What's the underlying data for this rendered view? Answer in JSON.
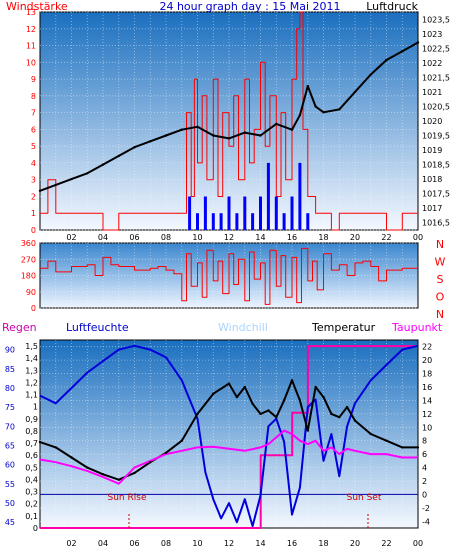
{
  "top": {
    "title": "24 hour graph day : 15 Mai 2011",
    "left_label": "Windstärke",
    "right_label": "Luftdruck",
    "wind_ticks": [
      "0",
      "1",
      "2",
      "3",
      "4",
      "5",
      "6",
      "7",
      "8",
      "9",
      "10",
      "11",
      "12",
      "13"
    ],
    "pressure_ticks": [
      "1016,5",
      "1017",
      "1017,5",
      "1018",
      "1018,5",
      "1019",
      "1019,5",
      "1020",
      "1020,5",
      "1021",
      "1021,5",
      "1022",
      "1022,5",
      "1023",
      "1023,5"
    ]
  },
  "middle": {
    "dir_ticks": [
      "0",
      "90",
      "180",
      "270",
      "360"
    ],
    "compass": [
      "N",
      "W",
      "S",
      "O",
      "N"
    ]
  },
  "bottom": {
    "labels": {
      "regen": "Regen",
      "luftfeuchte": "Luftfeuchte",
      "windchill": "Windchill",
      "temperatur": "Temperatur",
      "taupunkt": "Taupunkt"
    },
    "regen_ticks": [
      "0",
      "0,1",
      "0,2",
      "0,3",
      "0,4",
      "0,5",
      "0,6",
      "0,7",
      "0,8",
      "0,9",
      "1",
      "1,1",
      "1,2",
      "1,3",
      "1,4",
      "1,5"
    ],
    "humidity_ticks": [
      "45",
      "50",
      "55",
      "60",
      "65",
      "70",
      "75",
      "80",
      "85",
      "90"
    ],
    "temp_ticks": [
      "-4",
      "-2",
      "0",
      "2",
      "4",
      "6",
      "8",
      "10",
      "12",
      "14",
      "16",
      "18",
      "20",
      "22"
    ],
    "sunrise": "Sun Rise",
    "sunset": "Sun Set"
  },
  "x_ticks": [
    "02",
    "04",
    "06",
    "08",
    "10",
    "12",
    "14",
    "16",
    "18",
    "20",
    "22",
    "00"
  ],
  "colors": {
    "wind": "#ff0000",
    "gust": "#0000ff",
    "pressure": "#000000",
    "direction": "#ff0000",
    "humidity": "#0000dd",
    "temperature": "#000000",
    "dewpoint": "#ff00ff",
    "rain": "#ff00aa",
    "windchill": "#aad4ff",
    "label_red": "#ff0000",
    "label_blue": "#0000cc",
    "label_magenta": "#ff00ff"
  },
  "chart_data": [
    {
      "type": "line",
      "title": "24 hour graph day : 15 Mai 2011",
      "x_range": [
        0,
        24
      ],
      "series": [
        {
          "name": "Windstärke",
          "axis": "left",
          "ylim": [
            0,
            13
          ],
          "x": [
            0,
            0.5,
            1,
            2,
            3,
            4,
            5,
            6,
            7,
            8,
            9,
            9.3,
            9.6,
            9.8,
            10,
            10.3,
            10.6,
            11,
            11.3,
            11.6,
            12,
            12.3,
            12.6,
            13,
            13.3,
            13.6,
            14,
            14.3,
            14.6,
            15,
            15.3,
            15.6,
            16,
            16.3,
            16.5,
            16.7,
            17,
            17.5,
            18,
            18.5,
            19,
            20,
            21,
            22,
            23,
            24
          ],
          "y": [
            1,
            3,
            1,
            1,
            1,
            0,
            1,
            1,
            1,
            1,
            1,
            7,
            2,
            9,
            4,
            8,
            3,
            9,
            2,
            7,
            5,
            8,
            3,
            9,
            4,
            6,
            10,
            5,
            8,
            2,
            7,
            3,
            9,
            12,
            13,
            6,
            2,
            1,
            1,
            0,
            1,
            1,
            1,
            0,
            1,
            1
          ]
        },
        {
          "name": "Gust",
          "axis": "left",
          "ylim": [
            0,
            13
          ],
          "x": [
            9.5,
            10,
            10.5,
            11,
            11.5,
            12,
            12.5,
            13,
            13.5,
            14,
            14.5,
            15,
            15.5,
            16,
            16.5,
            17
          ],
          "y": [
            2,
            1,
            2,
            1,
            1,
            2,
            1,
            2,
            1,
            2,
            4,
            2,
            1,
            2,
            4,
            1
          ]
        },
        {
          "name": "Luftdruck",
          "axis": "right",
          "ylim": [
            1016.25,
            1023.75
          ],
          "x": [
            0,
            1,
            2,
            3,
            4,
            5,
            6,
            7,
            8,
            9,
            10,
            11,
            12,
            13,
            14,
            15,
            16,
            16.5,
            17,
            17.5,
            18,
            19,
            20,
            21,
            22,
            23,
            24
          ],
          "y": [
            1017.6,
            1017.8,
            1018.0,
            1018.2,
            1018.5,
            1018.8,
            1019.1,
            1019.3,
            1019.5,
            1019.7,
            1019.8,
            1019.5,
            1019.4,
            1019.6,
            1019.5,
            1019.9,
            1019.7,
            1020.2,
            1021.2,
            1020.5,
            1020.3,
            1020.4,
            1021.0,
            1021.6,
            1022.1,
            1022.4,
            1022.7
          ]
        }
      ]
    },
    {
      "type": "line",
      "x_range": [
        0,
        24
      ],
      "series": [
        {
          "name": "Windrichtung",
          "ylim": [
            0,
            360
          ],
          "x": [
            0,
            0.5,
            1,
            2,
            3,
            3.5,
            4,
            4.5,
            5,
            6,
            7,
            7.5,
            8,
            8.5,
            9,
            9.3,
            9.6,
            10,
            10.3,
            10.6,
            11,
            11.3,
            11.6,
            12,
            12.3,
            12.6,
            13,
            13.3,
            13.6,
            14,
            14.3,
            14.6,
            15,
            15.3,
            15.6,
            16,
            16.3,
            16.6,
            17,
            17.3,
            17.6,
            18,
            18.5,
            19,
            19.5,
            20,
            20.5,
            21,
            21.5,
            22,
            23,
            24
          ],
          "y": [
            220,
            260,
            200,
            230,
            240,
            180,
            280,
            240,
            230,
            210,
            220,
            230,
            210,
            190,
            40,
            300,
            120,
            250,
            60,
            320,
            150,
            260,
            80,
            300,
            130,
            270,
            40,
            310,
            160,
            250,
            20,
            320,
            120,
            290,
            60,
            280,
            30,
            330,
            150,
            260,
            100,
            300,
            210,
            240,
            180,
            250,
            260,
            230,
            150,
            210,
            220,
            220
          ]
        }
      ]
    },
    {
      "type": "line",
      "x_range": [
        0,
        24
      ],
      "series": [
        {
          "name": "Luftfeuchte",
          "axis": "left",
          "ylim": [
            43.5,
            92.5
          ],
          "x": [
            0,
            1,
            2,
            3,
            4,
            5,
            6,
            7,
            8,
            9,
            10,
            10.5,
            11,
            11.5,
            12,
            12.5,
            13,
            13.5,
            14,
            14.5,
            15,
            15.5,
            16,
            16.5,
            17,
            17.5,
            18,
            18.5,
            19,
            19.5,
            20,
            21,
            22,
            23,
            24
          ],
          "y": [
            78,
            76,
            80,
            84,
            87,
            90,
            91,
            90,
            88,
            82,
            72,
            58,
            51,
            46,
            50,
            45,
            51,
            44,
            52,
            70,
            72,
            66,
            47,
            54,
            75,
            77,
            61,
            68,
            57,
            70,
            76,
            82,
            86,
            90,
            91
          ]
        },
        {
          "name": "Temperatur",
          "axis": "right",
          "ylim": [
            -5,
            23
          ],
          "x": [
            0,
            1,
            2,
            3,
            4,
            5,
            6,
            7,
            8,
            9,
            10,
            11,
            12,
            12.5,
            13,
            13.5,
            14,
            14.5,
            15,
            15.5,
            16,
            16.5,
            17,
            17.5,
            18,
            18.5,
            19,
            19.5,
            20,
            21,
            22,
            23,
            24
          ],
          "y": [
            7.8,
            7.0,
            5.5,
            4.0,
            3.0,
            2.2,
            3.2,
            4.8,
            6.2,
            8.0,
            12.0,
            15.0,
            16.5,
            14.5,
            16.0,
            13.5,
            12.0,
            12.5,
            11.5,
            14.0,
            17.0,
            14.0,
            9.5,
            16.0,
            14.5,
            12.0,
            11.5,
            13.0,
            11.0,
            9.0,
            8.0,
            7.0,
            7.0
          ]
        },
        {
          "name": "Taupunkt",
          "axis": "right",
          "ylim": [
            -5,
            23
          ],
          "x": [
            0,
            1,
            2,
            3,
            4,
            5,
            6,
            7,
            8,
            9,
            10,
            11,
            12,
            13,
            14,
            14.5,
            15,
            15.5,
            16,
            16.5,
            17,
            17.5,
            18,
            18.5,
            19,
            19.5,
            20,
            21,
            22,
            23,
            24
          ],
          "y": [
            5.2,
            4.8,
            4.2,
            3.5,
            2.6,
            1.6,
            4.0,
            5.0,
            6.0,
            6.5,
            7.0,
            7.1,
            6.8,
            6.5,
            7.0,
            7.5,
            8.5,
            9.5,
            9.0,
            8.0,
            7.5,
            8.0,
            6.5,
            7.0,
            6.0,
            6.8,
            6.5,
            6.0,
            6.0,
            5.5,
            5.5
          ]
        },
        {
          "name": "Regen",
          "axis": "left",
          "ylim": [
            0,
            1.55
          ],
          "x": [
            0,
            14,
            14.01,
            16,
            16.01,
            17,
            17.01,
            24
          ],
          "y": [
            0,
            0,
            0.6,
            0.6,
            0.95,
            0.95,
            1.5,
            1.5
          ]
        }
      ]
    }
  ]
}
